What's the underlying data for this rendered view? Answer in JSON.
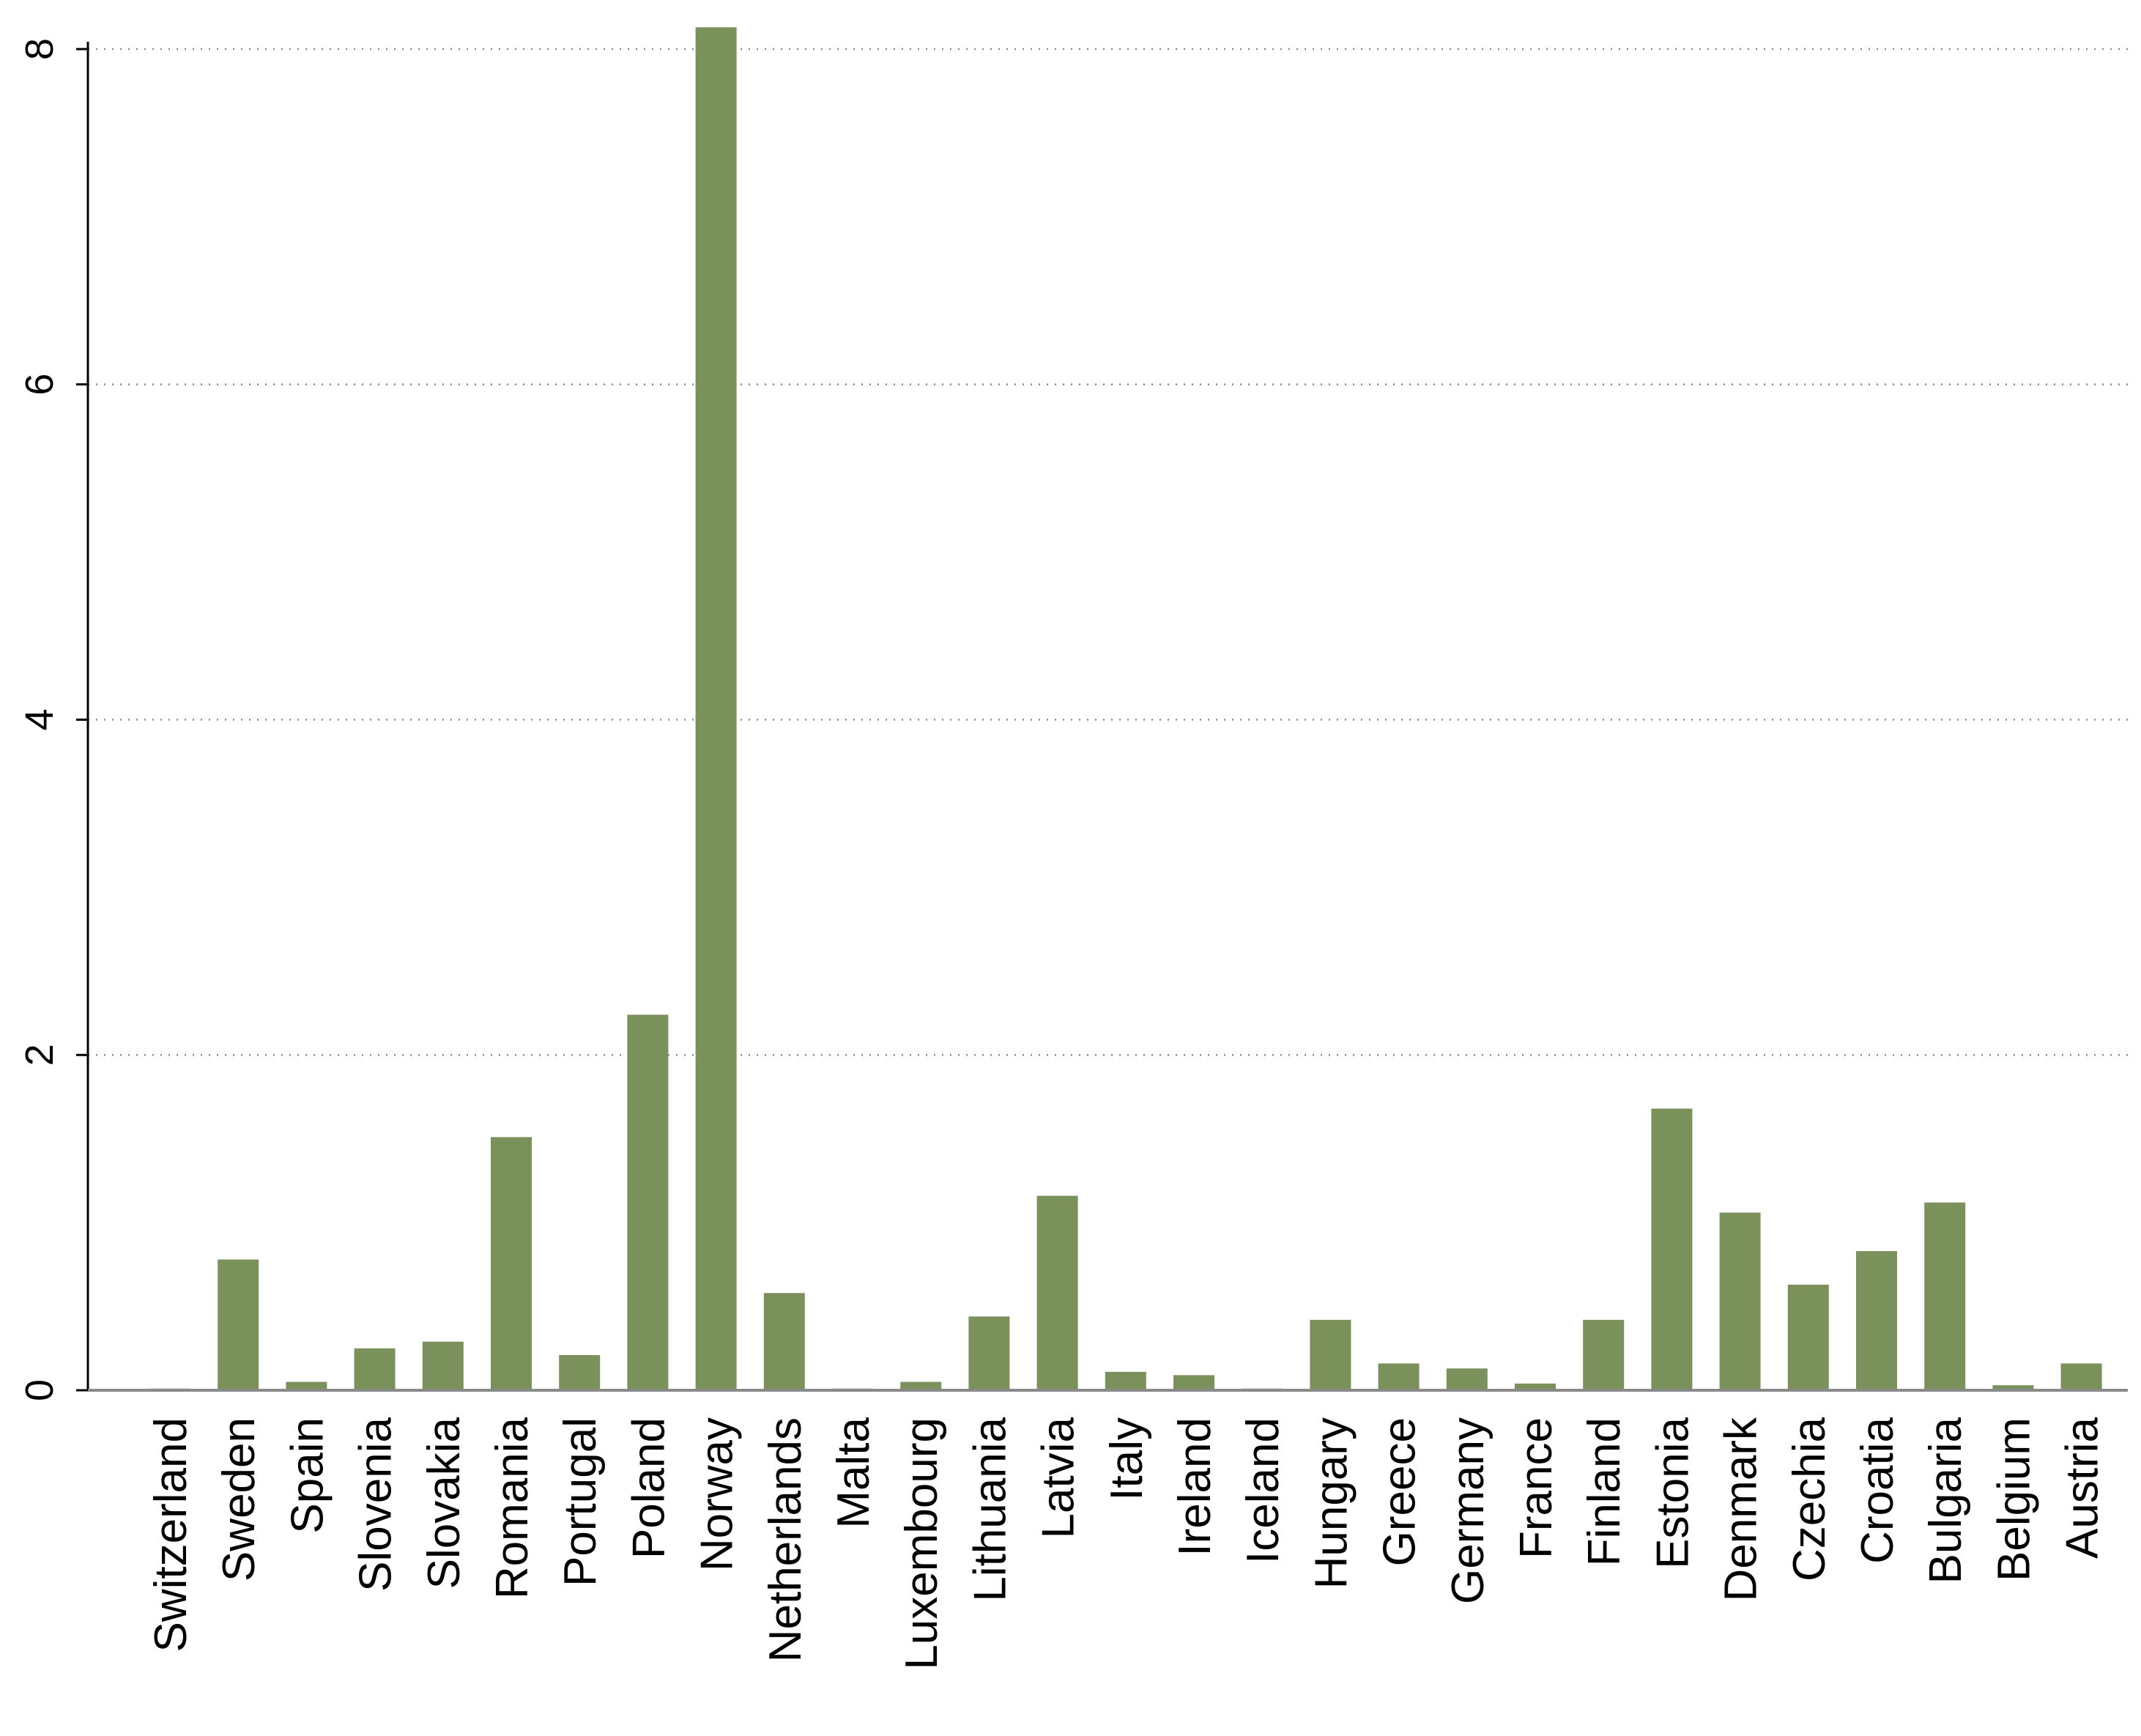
{
  "chart_data": {
    "type": "bar",
    "title": "",
    "xlabel": "",
    "ylabel": "",
    "ylim": [
      0,
      8.2
    ],
    "yticks": [
      0,
      2,
      4,
      6,
      8
    ],
    "ytick_labels": [
      "0",
      "2",
      "4",
      "6",
      "8"
    ],
    "grid": true,
    "bar_color": "#7a915b",
    "categories": [
      "Switzerland",
      "Sweden",
      "Spain",
      "Slovenia",
      "Slovakia",
      "Romania",
      "Portugal",
      "Poland",
      "Norway",
      "Netherlands",
      "Malta",
      "Luxembourg",
      "Lithuania",
      "Latvia",
      "Italy",
      "Ireland",
      "Iceland",
      "Hungary",
      "Greece",
      "Germany",
      "France",
      "Finland",
      "Estonia",
      "Denmark",
      "Czechia",
      "Croatia",
      "Bulgaria",
      "Belgium",
      "Austria"
    ],
    "values": [
      0.01,
      0.78,
      0.05,
      0.25,
      0.29,
      1.51,
      0.21,
      2.24,
      8.13,
      0.58,
      0.01,
      0.05,
      0.44,
      1.16,
      0.11,
      0.09,
      0.01,
      0.42,
      0.16,
      0.13,
      0.04,
      0.42,
      1.68,
      1.06,
      0.63,
      0.83,
      1.12,
      0.03,
      0.16
    ]
  }
}
